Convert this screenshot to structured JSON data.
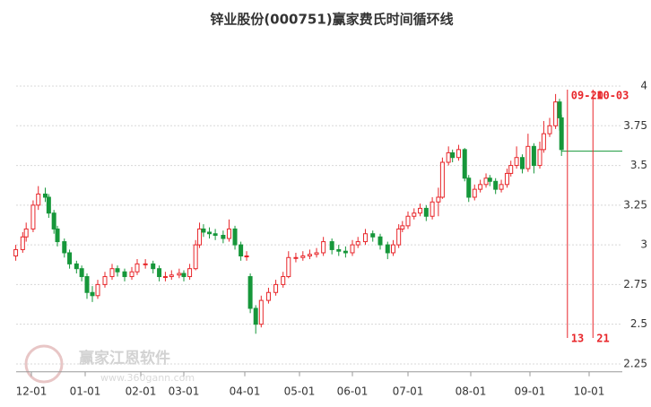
{
  "chart_data": {
    "type": "candlestick",
    "title": "锌业股份(000751)赢家费氏时间循环线",
    "x": [
      "11-22",
      "11-26",
      "11-28",
      "12-02",
      "12-05",
      "12-09",
      "12-11",
      "12-14",
      "12-16",
      "12-20",
      "12-23",
      "12-27",
      "12-30",
      "01-02",
      "01-05",
      "01-08",
      "01-12",
      "01-16",
      "01-19",
      "01-23",
      "01-27",
      "01-30",
      "02-04",
      "02-09",
      "02-13",
      "02-17",
      "02-21",
      "02-26",
      "03-01",
      "03-04",
      "03-07",
      "03-09",
      "03-11",
      "03-14",
      "03-17",
      "03-21",
      "03-24",
      "03-27",
      "03-30",
      "04-02",
      "04-04",
      "04-07",
      "04-10",
      "04-14",
      "04-18",
      "04-22",
      "04-25",
      "04-29",
      "05-03",
      "05-07",
      "05-11",
      "05-15",
      "05-20",
      "05-24",
      "05-28",
      "06-01",
      "06-04",
      "06-08",
      "06-12",
      "06-16",
      "06-20",
      "06-23",
      "06-26",
      "06-28",
      "07-01",
      "07-04",
      "07-07",
      "07-10",
      "07-13",
      "07-16",
      "07-18",
      "07-21",
      "07-23",
      "07-26",
      "07-29",
      "07-31",
      "08-03",
      "08-06",
      "08-09",
      "08-11",
      "08-14",
      "08-17",
      "08-20",
      "08-22",
      "08-25",
      "08-28",
      "08-31",
      "09-03",
      "09-06",
      "09-08",
      "09-11",
      "09-14",
      "09-16",
      "09-17"
    ],
    "open": [
      2.93,
      2.97,
      3.05,
      3.1,
      3.25,
      3.32,
      3.3,
      3.2,
      3.1,
      3.02,
      2.95,
      2.88,
      2.85,
      2.8,
      2.7,
      2.68,
      2.75,
      2.8,
      2.85,
      2.83,
      2.8,
      2.83,
      2.88,
      2.88,
      2.85,
      2.8,
      2.8,
      2.81,
      2.82,
      2.8,
      2.85,
      3.0,
      3.1,
      3.08,
      3.07,
      3.06,
      3.04,
      3.1,
      3.0,
      2.93,
      2.8,
      2.6,
      2.5,
      2.65,
      2.7,
      2.75,
      2.8,
      2.92,
      2.92,
      2.93,
      2.94,
      2.95,
      3.02,
      2.97,
      2.96,
      2.95,
      3.0,
      3.02,
      3.07,
      3.05,
      3.0,
      2.95,
      3.0,
      3.1,
      3.12,
      3.18,
      3.2,
      3.23,
      3.18,
      3.27,
      3.3,
      3.52,
      3.58,
      3.55,
      3.6,
      3.42,
      3.3,
      3.35,
      3.38,
      3.42,
      3.4,
      3.35,
      3.38,
      3.45,
      3.5,
      3.55,
      3.48,
      3.62,
      3.5,
      3.6,
      3.7,
      3.75,
      3.9,
      3.8
    ],
    "high": [
      3.0,
      3.08,
      3.14,
      3.28,
      3.37,
      3.36,
      3.32,
      3.22,
      3.12,
      3.04,
      2.97,
      2.9,
      2.87,
      2.82,
      2.74,
      2.78,
      2.83,
      2.88,
      2.87,
      2.85,
      2.86,
      2.91,
      2.91,
      2.9,
      2.87,
      2.83,
      2.84,
      2.85,
      2.84,
      2.88,
      3.03,
      3.14,
      3.13,
      3.11,
      3.1,
      3.09,
      3.16,
      3.12,
      3.02,
      2.96,
      2.82,
      2.62,
      2.68,
      2.73,
      2.78,
      2.83,
      2.96,
      2.95,
      2.96,
      2.97,
      2.98,
      3.05,
      3.04,
      3.0,
      2.99,
      3.03,
      3.05,
      3.1,
      3.09,
      3.07,
      3.02,
      3.03,
      3.13,
      3.15,
      3.21,
      3.23,
      3.26,
      3.25,
      3.3,
      3.36,
      3.55,
      3.62,
      3.6,
      3.63,
      3.61,
      3.44,
      3.38,
      3.41,
      3.45,
      3.44,
      3.42,
      3.41,
      3.48,
      3.53,
      3.62,
      3.57,
      3.7,
      3.64,
      3.65,
      3.78,
      3.8,
      3.95,
      3.92,
      3.82
    ],
    "low": [
      2.9,
      2.95,
      3.02,
      3.08,
      3.22,
      3.27,
      3.17,
      3.07,
      2.99,
      2.92,
      2.85,
      2.82,
      2.77,
      2.66,
      2.64,
      2.66,
      2.73,
      2.78,
      2.8,
      2.77,
      2.78,
      2.81,
      2.85,
      2.82,
      2.77,
      2.77,
      2.78,
      2.79,
      2.77,
      2.78,
      2.84,
      2.98,
      3.05,
      3.04,
      3.03,
      3.01,
      3.02,
      2.97,
      2.9,
      2.9,
      2.57,
      2.44,
      2.48,
      2.63,
      2.68,
      2.73,
      2.79,
      2.89,
      2.9,
      2.91,
      2.92,
      2.93,
      2.94,
      2.93,
      2.92,
      2.93,
      2.98,
      3.0,
      3.02,
      2.97,
      2.91,
      2.93,
      2.98,
      3.08,
      3.1,
      3.16,
      3.18,
      3.15,
      3.16,
      3.18,
      3.29,
      3.5,
      3.52,
      3.53,
      3.4,
      3.27,
      3.28,
      3.33,
      3.36,
      3.37,
      3.32,
      3.33,
      3.36,
      3.43,
      3.48,
      3.45,
      3.46,
      3.45,
      3.48,
      3.58,
      3.68,
      3.73,
      3.72,
      3.56
    ],
    "close": [
      2.97,
      3.05,
      3.1,
      3.25,
      3.32,
      3.3,
      3.2,
      3.1,
      3.02,
      2.95,
      2.88,
      2.85,
      2.8,
      2.7,
      2.68,
      2.75,
      2.8,
      2.85,
      2.83,
      2.8,
      2.83,
      2.88,
      2.88,
      2.85,
      2.8,
      2.8,
      2.81,
      2.82,
      2.8,
      2.85,
      3.0,
      3.1,
      3.08,
      3.07,
      3.06,
      3.04,
      3.1,
      3.0,
      2.93,
      2.93,
      2.6,
      2.5,
      2.65,
      2.7,
      2.75,
      2.8,
      2.92,
      2.92,
      2.93,
      2.94,
      2.95,
      3.02,
      2.97,
      2.96,
      2.95,
      3.0,
      3.02,
      3.07,
      3.05,
      3.0,
      2.95,
      3.0,
      3.1,
      3.12,
      3.18,
      3.2,
      3.23,
      3.18,
      3.27,
      3.3,
      3.52,
      3.58,
      3.55,
      3.6,
      3.42,
      3.3,
      3.35,
      3.38,
      3.42,
      3.4,
      3.35,
      3.38,
      3.45,
      3.5,
      3.55,
      3.48,
      3.62,
      3.5,
      3.6,
      3.7,
      3.75,
      3.9,
      3.8,
      3.6
    ],
    "up_color": "#e8262a",
    "down_color": "#16973a",
    "ylim": [
      2.2,
      4.2
    ],
    "yticks": [
      2.25,
      2.5,
      2.75,
      3,
      3.25,
      3.5,
      3.75,
      4
    ],
    "xticks": [
      "12-01",
      "01-01",
      "02-01",
      "03-01",
      "04-01",
      "05-01",
      "06-01",
      "07-01",
      "08-01",
      "09-01",
      "10-01"
    ],
    "grid": true,
    "level": 3.59,
    "level_color": "#16973a",
    "cycles": [
      {
        "date": "09-20",
        "count": 13
      },
      {
        "date": "10-03",
        "count": 21
      }
    ],
    "cycle_color": "#e8262a"
  },
  "watermark": {
    "name": "赢家江恩软件",
    "url": "www.360gann.com"
  }
}
